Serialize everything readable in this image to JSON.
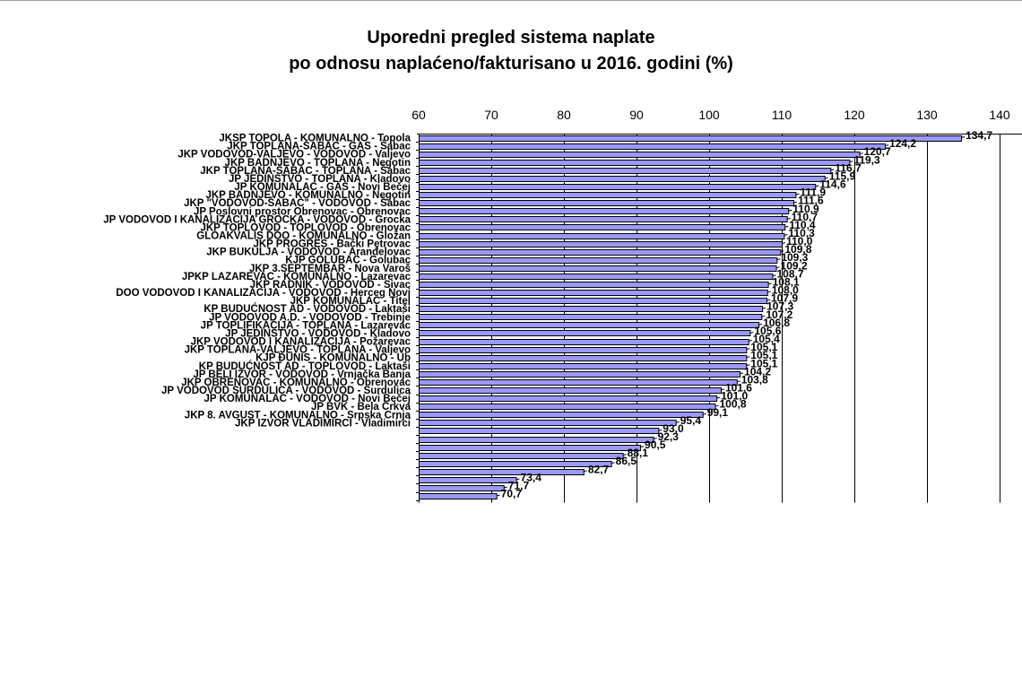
{
  "chart_data": {
    "type": "bar",
    "orientation": "horizontal",
    "title": "Uporedni pregled sistema naplate",
    "subtitle": "po odnosu naplaćeno/fakturisano u 2016. godini (%)",
    "xlim": [
      60,
      140
    ],
    "x_ticks": [
      "60",
      "70",
      "80",
      "90",
      "100",
      "110",
      "120",
      "130",
      "140"
    ],
    "grid": "vertical",
    "bar_color": "#9999ff",
    "categories": [
      "JKSP TOPOLA - KOMUNALNO - Topola",
      "JKP TOPLANA-ŠABAC - GAS - Šabac",
      "JKP VODOVOD-VALJEVO - VODOVOD - Valjevo",
      "JKP BADNJEVO - TOPLANA - Negotin",
      "JKP TOPLANA-ŠABAC - TOPLANA - Šabac",
      "JP JEDINSTVO - TOPLANA - Kladovo",
      "JP KOMUNALAC - GAS - Novi Bečej",
      "JKP BADNJEVO - KOMUNALNO - Negotin",
      "JKP \"VODOVOD-ŠABAC\" - VODOVOD - Šabac",
      "JP Poslovni prostor Obrenovac - Obrenovac",
      "JP VODOVOD I KANALIZACIJA GROCKA - VODOVOD - Grocka",
      "JKP TOPLOVOD - TOPLOVOD - Obrenovac",
      "GLOAKVALIS DOO - KOMUNALNO - Gložan",
      "JKP PROGRES - Bački Petrovac",
      "JKP BUKULJA - VODOVOD - Aranđelovac",
      "KJP GOLUBAC - Golubac",
      "JKP 3.SEPTEMBAR - Nova Varoš",
      "JPKP LAZAREVAC - KOMUNALNO - Lazarevac",
      "JKP RADNIK - VODOVOD - Sivac",
      "DOO VODOVOD I KANALIZACIJA - VODOVOD - Herceg Novi",
      "JKP KOMUNALAC - Titel",
      "KP BUDUĆNOST AD - VODOVOD - Laktaši",
      "JP VODOVOD A.D. - VODOVOD - Trebinje",
      "JP TOPLIFIKACIJA - TOPLANA - Lazarevac",
      "JP JEDINSTVO - VODOVOD - Kladovo",
      "JKP VODOVOD I KANALIZACIJA - Požarevac",
      "JKP TOPLANA-VALJEVO - TOPLANA - Valjevo",
      "KJP ĐUNIS - KOMUNALNO - Ub",
      "KP BUDUĆNOST AD - TOPLOVOD - Laktaši",
      "JP BELI IZVOR - VODOVOD - Vrnjačka Banja",
      "JKP OBRENOVAC - KOMUNALNO - Obrenovac",
      "JP VODOVOD SURDULICA - VODOVOD - Surdulica",
      "JP KOMUNALAC - VODOVOD - Novi Bečej",
      "JP BVK - Bela Crkva",
      "JKP 8. AVGUST - KOMUNALNO - Srpska Crnja",
      "JKP IZVOR VLADIMIRCI - Vladimirci",
      "",
      "",
      "",
      "",
      "",
      "",
      "",
      "",
      ""
    ],
    "values": [
      134.7,
      124.2,
      120.7,
      119.3,
      116.7,
      115.9,
      114.6,
      111.9,
      111.6,
      110.9,
      110.7,
      110.4,
      110.3,
      110.0,
      109.8,
      109.3,
      109.2,
      108.7,
      108.1,
      108.0,
      107.9,
      107.3,
      107.2,
      106.8,
      105.6,
      105.4,
      105.1,
      105.1,
      105.1,
      104.2,
      103.8,
      101.6,
      101.0,
      100.8,
      99.1,
      95.4,
      93.0,
      92.3,
      90.5,
      88.1,
      86.5,
      82.7,
      73.4,
      71.7,
      70.7
    ],
    "value_labels": [
      "134,7",
      "124,2",
      "120,7",
      "119,3",
      "116,7",
      "115,9",
      "114,6",
      "111,9",
      "111,6",
      "110,9",
      "110,7",
      "110,4",
      "110,3",
      "110,0",
      "109,8",
      "109,3",
      "109,2",
      "108,7",
      "108,1",
      "108,0",
      "107,9",
      "107,3",
      "107,2",
      "106,8",
      "105,6",
      "105,4",
      "105,1",
      "105,1",
      "105,1",
      "104,2",
      "103,8",
      "101,6",
      "101,0",
      "100,8",
      "99,1",
      "95,4",
      "93,0",
      "92,3",
      "90,5",
      "88,1",
      "86,5",
      "82,7",
      "73,4",
      "71,7",
      "70,7"
    ]
  }
}
